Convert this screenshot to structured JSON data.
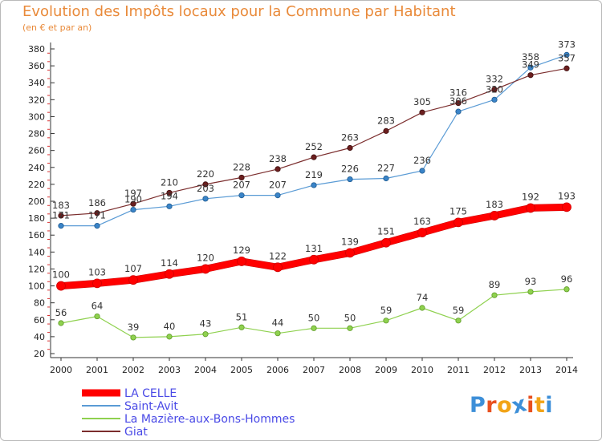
{
  "chart_data": {
    "type": "line",
    "title": "Evolution des Impôts locaux pour la Commune par Habitant",
    "subtitle": "(en € et par an)",
    "x": [
      "2000",
      "2001",
      "2002",
      "2003",
      "2004",
      "2005",
      "2006",
      "2007",
      "2008",
      "2009",
      "2010",
      "2011",
      "2012",
      "2013",
      "2014"
    ],
    "ylim": [
      20,
      380
    ],
    "yticks": [
      20,
      40,
      60,
      80,
      100,
      120,
      140,
      160,
      180,
      200,
      220,
      240,
      260,
      280,
      300,
      320,
      340,
      360,
      380
    ],
    "grid": false,
    "legend_position": "bottom-left",
    "series": [
      {
        "name": "LA CELLE",
        "color": "#ff0000",
        "values": [
          100,
          103,
          107,
          114,
          120,
          129,
          122,
          131,
          139,
          151,
          163,
          175,
          183,
          192,
          193
        ]
      },
      {
        "name": "Saint-Avit",
        "color": "#5a9bd5",
        "values": [
          171,
          171,
          190,
          194,
          203,
          207,
          207,
          219,
          226,
          227,
          236,
          306,
          320,
          358,
          373
        ]
      },
      {
        "name": "La Mazière-aux-Bons-Hommes",
        "color": "#8fd14f",
        "values": [
          56,
          64,
          39,
          40,
          43,
          51,
          44,
          50,
          50,
          59,
          74,
          59,
          89,
          93,
          96
        ]
      },
      {
        "name": "Giat",
        "color": "#7b2d2d",
        "values": [
          183,
          186,
          197,
          210,
          220,
          228,
          238,
          252,
          263,
          283,
          305,
          316,
          332,
          349,
          357
        ]
      }
    ]
  },
  "logo": {
    "text": "Proxiti",
    "colors": [
      "#3d8fd8",
      "#e8501f",
      "#f2a417",
      "#3d8fd8",
      "#e8501f",
      "#f2a417",
      "#3d8fd8"
    ]
  }
}
